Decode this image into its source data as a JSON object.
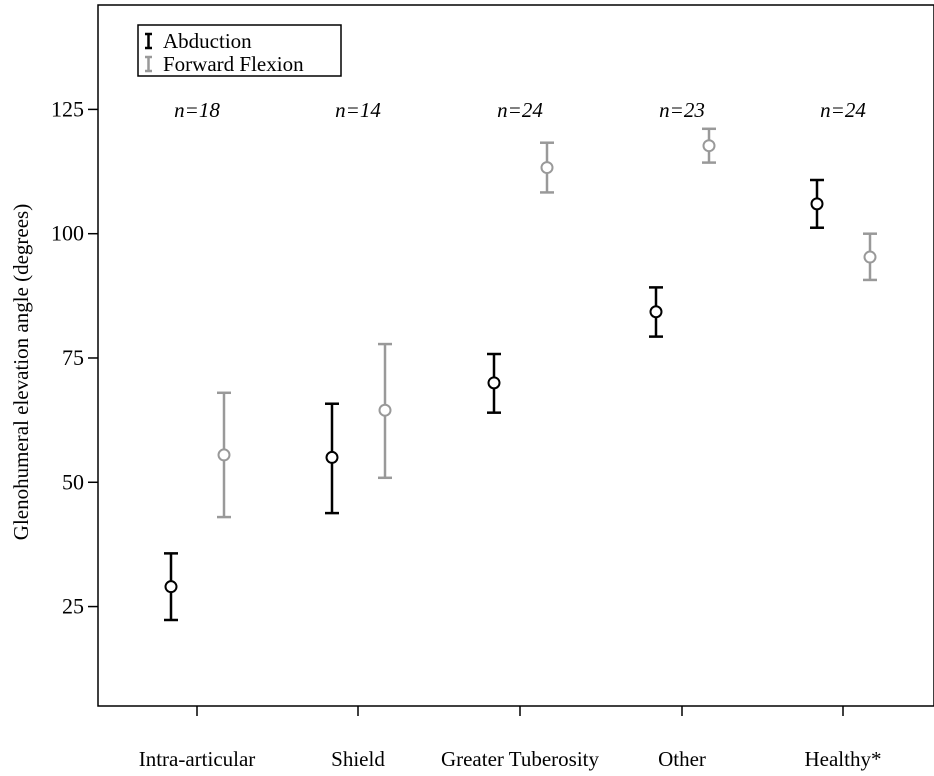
{
  "chart_data": {
    "type": "errorbar",
    "ylabel": "Glenohumeral elevation angle (degrees)",
    "xlabel": "",
    "ylim": [
      5,
      146
    ],
    "yticks": [
      25,
      50,
      75,
      100,
      125
    ],
    "grid": false,
    "legend_position": "top-left",
    "categories": [
      "Intra-articular",
      "Shield",
      "Greater Tuberosity",
      "Other",
      "Healthy*"
    ],
    "group_counts": [
      "n=18",
      "n=14",
      "n=24",
      "n=23",
      "n=24"
    ],
    "series": [
      {
        "name": "Abduction",
        "color": "#000000",
        "means": [
          29,
          55,
          70,
          84.3,
          106
        ],
        "lower": [
          22.3,
          43.8,
          64,
          79.3,
          101.2
        ],
        "upper": [
          35.7,
          65.8,
          75.8,
          89.2,
          110.8
        ]
      },
      {
        "name": "Forward Flexion",
        "color": "#999999",
        "means": [
          55.5,
          64.5,
          113.3,
          117.7,
          95.3
        ],
        "lower": [
          43,
          50.9,
          108.3,
          114.3,
          90.7
        ],
        "upper": [
          68,
          77.8,
          118.3,
          121.1,
          100
        ]
      }
    ]
  }
}
